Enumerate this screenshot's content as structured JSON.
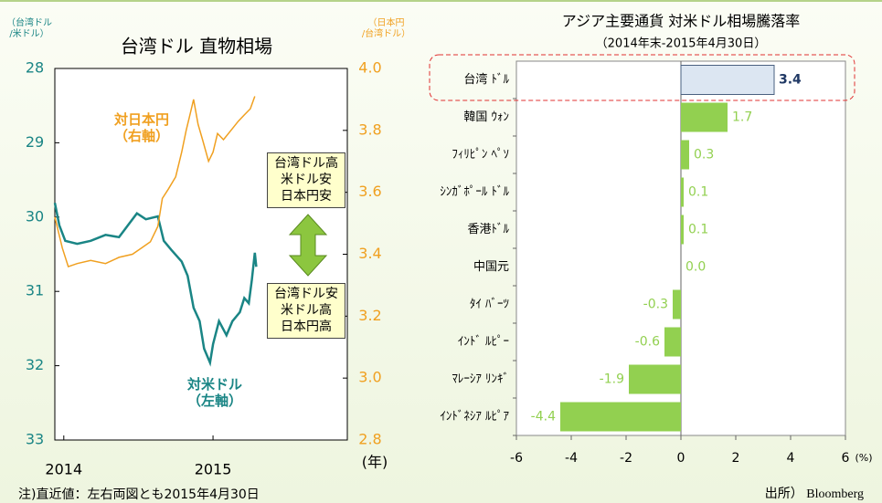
{
  "note": "注)直近値：左右両図とも2015年4月30日",
  "source": "出所） Bloomberg",
  "chart_data": [
    {
      "type": "line",
      "title": "台湾ドル 直物相場",
      "ylabel": "（台湾ドル\n/米ドル）",
      "y2label": "（日本円\n/台湾ドル）",
      "xlabel": "(年)",
      "xlim": [
        2013.94,
        2015.9
      ],
      "xticks": [
        2014,
        2015
      ],
      "ylim": [
        33,
        28
      ],
      "yticks": [
        28,
        29,
        30,
        31,
        32,
        33
      ],
      "ycolor": "#1a8585",
      "y2lim": [
        2.8,
        4
      ],
      "y2ticks": [
        2.8,
        {
          "value": 3,
          "label": "3.0"
        },
        3.2,
        3.4,
        3.6,
        3.8,
        {
          "value": 4,
          "label": "4.0"
        }
      ],
      "y2color": "#f0a020",
      "annotations": [
        "台湾ドル高\n米ドル安\n日本円安",
        "台湾ドル安\n米ドル高\n日本円高"
      ],
      "series": [
        {
          "name": "対米ドル\n（左軸）",
          "color": "#1a8585",
          "x": [
            2013.94,
            2013.97,
            2014.01,
            2014.09,
            2014.18,
            2014.28,
            2014.37,
            2014.43,
            2014.49,
            2014.55,
            2014.63,
            2014.67,
            2014.72,
            2014.79,
            2014.83,
            2014.87,
            2014.91,
            2014.94,
            2014.98,
            2015.0,
            2015.04,
            2015.09,
            2015.13,
            2015.18,
            2015.21,
            2015.24,
            2015.26,
            2015.28,
            2015.29
          ],
          "values": [
            29.81,
            30.11,
            30.32,
            30.36,
            30.32,
            30.24,
            30.27,
            30.11,
            29.95,
            30.03,
            29.99,
            30.32,
            30.44,
            30.6,
            30.79,
            31.22,
            31.4,
            31.77,
            31.96,
            31.71,
            31.4,
            31.59,
            31.4,
            31.28,
            31.09,
            31.16,
            30.85,
            30.48,
            30.67
          ]
        },
        {
          "name": "対日本円\n（右軸）",
          "color": "#f0a020",
          "axis": "y2",
          "x": [
            2013.94,
            2013.99,
            2014.03,
            2014.09,
            2014.18,
            2014.28,
            2014.37,
            2014.46,
            2014.52,
            2014.58,
            2014.63,
            2014.66,
            2014.7,
            2014.75,
            2014.79,
            2014.82,
            2014.85,
            2014.87,
            2014.9,
            2014.93,
            2014.97,
            2015.0,
            2015.03,
            2015.07,
            2015.12,
            2015.17,
            2015.21,
            2015.25,
            2015.28
          ],
          "values": [
            3.52,
            3.42,
            3.36,
            3.37,
            3.38,
            3.37,
            3.39,
            3.4,
            3.42,
            3.44,
            3.49,
            3.58,
            3.61,
            3.65,
            3.73,
            3.8,
            3.86,
            3.9,
            3.82,
            3.77,
            3.7,
            3.73,
            3.79,
            3.77,
            3.8,
            3.83,
            3.85,
            3.87,
            3.91
          ]
        }
      ]
    },
    {
      "type": "barh",
      "title": "アジア主要通貨 対米ドル相場騰落率",
      "subtitle": "（2014年末-2015年4月30日）",
      "xlabel": "(%)",
      "categories": [
        "台湾 ﾄﾞﾙ",
        "韓国 ｳｫﾝ",
        "ﾌｨﾘﾋﾟﾝ ﾍﾟｿ",
        "ｼﾝｶﾞﾎﾟｰﾙ ﾄﾞﾙ",
        "香港ﾄﾞﾙ",
        "中国元",
        "ﾀｲ ﾊﾞｰﾂ",
        "ｲﾝﾄﾞ ﾙﾋﾟｰ",
        "ﾏﾚｰｼｱ ﾘﾝｷﾞ",
        "ｲﾝﾄﾞﾈｼｱ ﾙﾋﾟｱ"
      ],
      "values": [
        3.4,
        1.7,
        0.3,
        0.1,
        0.1,
        0,
        -0.3,
        -0.6,
        -1.9,
        -4.4
      ],
      "value_labels": [
        "3.4",
        "1.7",
        "0.3",
        "0.1",
        "0.1",
        "0.0",
        "-0.3",
        "-0.6",
        "-1.9",
        "-4.4"
      ],
      "colors": [
        "#dce6f2",
        "#92d050",
        "#92d050",
        "#92d050",
        "#92d050",
        "#92d050",
        "#92d050",
        "#92d050",
        "#92d050",
        "#92d050"
      ],
      "value_label_colors": [
        "#1f3864",
        "#92d050",
        "#92d050",
        "#92d050",
        "#92d050",
        "#92d050",
        "#92d050",
        "#92d050",
        "#92d050",
        "#92d050"
      ],
      "xlim": [
        -6,
        6
      ],
      "xticks": [
        -6,
        -4,
        -2,
        0,
        2,
        4,
        6
      ]
    }
  ]
}
